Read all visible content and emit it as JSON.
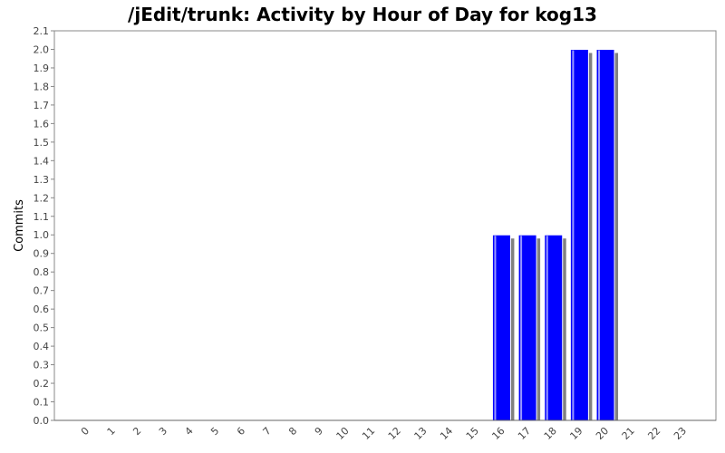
{
  "chart_data": {
    "type": "bar",
    "title": "/jEdit/trunk: Activity by Hour of Day for kog13",
    "xlabel": "",
    "ylabel": "Commits",
    "categories": [
      "0",
      "1",
      "2",
      "3",
      "4",
      "5",
      "6",
      "7",
      "8",
      "9",
      "10",
      "11",
      "12",
      "13",
      "14",
      "15",
      "16",
      "17",
      "18",
      "19",
      "20",
      "21",
      "22",
      "23"
    ],
    "values": [
      0,
      0,
      0,
      0,
      0,
      0,
      0,
      0,
      0,
      0,
      0,
      0,
      0,
      0,
      0,
      0,
      1,
      1,
      1,
      2,
      2,
      0,
      0,
      0
    ],
    "ylim": [
      0,
      2.1
    ],
    "yticks": [
      "0.0",
      "0.1",
      "0.2",
      "0.3",
      "0.4",
      "0.5",
      "0.6",
      "0.7",
      "0.8",
      "0.9",
      "1.0",
      "1.1",
      "1.2",
      "1.3",
      "1.4",
      "1.5",
      "1.6",
      "1.7",
      "1.8",
      "1.9",
      "2.0",
      "2.1"
    ],
    "grid": false,
    "bar_color": "#0000ff",
    "shadow_color": "#808080"
  }
}
